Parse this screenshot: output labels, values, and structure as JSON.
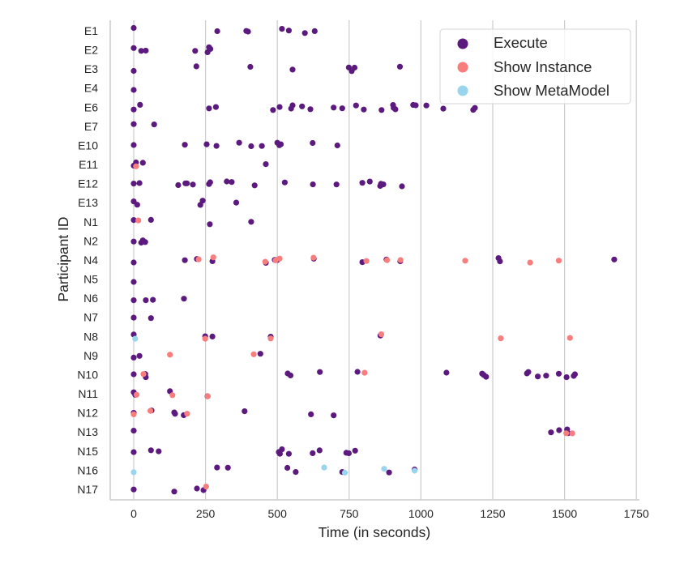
{
  "chart_data": {
    "type": "scatter",
    "title": "",
    "xlabel": "Time (in seconds)",
    "ylabel": "Participant ID",
    "xlim": [
      -82,
      1755
    ],
    "xticks": [
      0,
      250,
      500,
      750,
      1000,
      1250,
      1500,
      1750
    ],
    "xtick_labels": [
      "0",
      "250",
      "500",
      "750",
      "1000",
      "1250",
      "1500",
      "1750"
    ],
    "categories": [
      "E1",
      "E2",
      "E3",
      "E4",
      "E6",
      "E7",
      "E10",
      "E11",
      "E12",
      "E13",
      "N1",
      "N2",
      "N4",
      "N5",
      "N6",
      "N7",
      "N8",
      "N9",
      "N10",
      "N11",
      "N12",
      "N13",
      "N15",
      "N16",
      "N17"
    ],
    "grid": "x",
    "legend_position": "top-right",
    "series": [
      {
        "name": "Execute",
        "color": "#5c1a7e",
        "points": {
          "E1": [
            0,
            291,
            392,
            398,
            516,
            540,
            596,
            630
          ],
          "E2": [
            0,
            26,
            42,
            214,
            257,
            262,
            267
          ],
          "E3": [
            0,
            218,
            406,
            553,
            749,
            759,
            769,
            927
          ],
          "E4": [
            0
          ],
          "E6": [
            0,
            22,
            262,
            286,
            485,
            508,
            548,
            553,
            586,
            615,
            696,
            726,
            774,
            801,
            863,
            903,
            905,
            911,
            973,
            982,
            1019,
            1078,
            1182,
            1188
          ],
          "E7": [
            0,
            71
          ],
          "E10": [
            0,
            178,
            254,
            288,
            367,
            409,
            446,
            500,
            507,
            512,
            623,
            709
          ],
          "E11": [
            0,
            8,
            32,
            460
          ],
          "E12": [
            0,
            20,
            155,
            180,
            185,
            206,
            262,
            266,
            324,
            341,
            421,
            526,
            624,
            706,
            796,
            822,
            858,
            861,
            869,
            934
          ],
          "E13": [
            0,
            12,
            232,
            240,
            357
          ],
          "N1": [
            0,
            60,
            265,
            409
          ],
          "N2": [
            0,
            26,
            32,
            40
          ],
          "N4": [
            0,
            178,
            220,
            274,
            460,
            491,
            500,
            627,
            796,
            880,
            928,
            1270,
            1275,
            1673
          ],
          "N5": [
            0
          ],
          "N6": [
            0,
            42,
            67,
            175
          ],
          "N7": [
            0,
            60
          ],
          "N8": [
            0,
            249,
            274,
            477,
            859
          ],
          "N9": [
            0,
            20,
            441
          ],
          "N10": [
            0,
            40,
            42,
            536,
            546,
            648,
            779,
            1089,
            1213,
            1219,
            1227,
            1369,
            1374,
            1407,
            1436,
            1480,
            1507,
            1532,
            1536
          ],
          "N11": [
            0,
            5,
            126,
            257
          ],
          "N12": [
            0,
            62,
            141,
            144,
            174,
            386,
            617,
            696
          ],
          "N13": [
            0,
            1453,
            1481,
            1509,
            1512
          ],
          "N15": [
            0,
            60,
            87,
            505,
            509,
            516,
            540,
            623,
            647,
            740,
            749,
            771
          ],
          "N16": [
            290,
            328,
            535,
            564,
            726,
            889,
            978
          ],
          "N17": [
            0,
            141,
            220,
            243
          ]
        }
      },
      {
        "name": "Show Instance",
        "color": "#f87d7d",
        "points": {
          "E11": [
            8
          ],
          "N1": [
            16
          ],
          "N4": [
            226,
            277,
            458,
            494,
            508,
            626,
            810,
            882,
            929,
            1154,
            1380,
            1480
          ],
          "N8": [
            249,
            477,
            862,
            1278,
            1519
          ],
          "N9": [
            126,
            418
          ],
          "N10": [
            34,
            804
          ],
          "N11": [
            10,
            135,
            258
          ],
          "N12": [
            0,
            58,
            186
          ],
          "N13": [
            1506,
            1527
          ],
          "N17": [
            252
          ]
        }
      },
      {
        "name": "Show MetaModel",
        "color": "#99d5ec",
        "points": {
          "N8": [
            5
          ],
          "N16": [
            0,
            663,
            735,
            872,
            978
          ]
        }
      }
    ]
  }
}
